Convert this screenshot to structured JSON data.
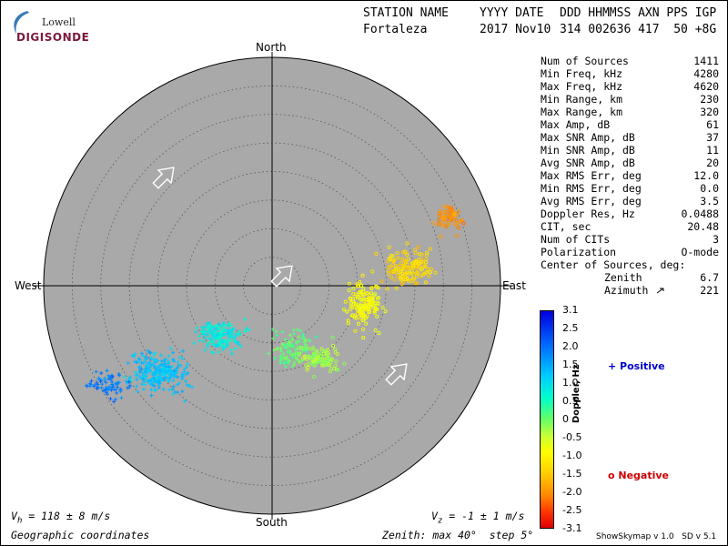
{
  "logo": {
    "line1": "Lowell",
    "line2": "DIGISONDE"
  },
  "header": {
    "labels": [
      "STATION NAME",
      "YYYY DATE",
      "DDD HHMMSS AXN PPS IGP"
    ],
    "station": "Fortaleza",
    "date": "2017 Nov10",
    "values": "314 002636 417  50 +8G"
  },
  "directions": {
    "north": "North",
    "south": "South",
    "east": "East",
    "west": "West"
  },
  "stats": [
    {
      "key": "Num of Sources",
      "value": "1411"
    },
    {
      "key": "Min Freq, kHz",
      "value": "4280"
    },
    {
      "key": "Max Freq, kHz",
      "value": "4620"
    },
    {
      "key": "Min Range, km",
      "value": "230"
    },
    {
      "key": "Max Range, km",
      "value": "320"
    },
    {
      "key": "Max Amp, dB",
      "value": "61"
    },
    {
      "key": "Max SNR Amp, dB",
      "value": "37"
    },
    {
      "key": "Min SNR Amp, dB",
      "value": "11"
    },
    {
      "key": "Avg SNR Amp, dB",
      "value": "20"
    },
    {
      "key": "Max RMS Err, deg",
      "value": "12.0"
    },
    {
      "key": "Min RMS Err, deg",
      "value": "0.0"
    },
    {
      "key": "Avg RMS Err, deg",
      "value": "3.5"
    },
    {
      "key": "Doppler Res, Hz",
      "value": "0.0488"
    },
    {
      "key": "CIT, sec",
      "value": "20.48"
    },
    {
      "key": "Num of CITs",
      "value": "3"
    },
    {
      "key": "Polarization",
      "value": "O-mode"
    }
  ],
  "center": {
    "label": "Center of Sources, deg:",
    "zenith_label": "Zenith",
    "zenith_value": "6.7",
    "azimuth_label": "Azimuth",
    "azimuth_value": "221"
  },
  "colorbar": {
    "title": "Doppler, Hz",
    "ticks": [
      "3.1",
      "2.5",
      "2.0",
      "1.5",
      "1.0",
      "0.5",
      "0",
      "-0.5",
      "-1.0",
      "-1.5",
      "-2.0",
      "-2.5",
      "-3.1"
    ],
    "min": -3.1,
    "max": 3.1
  },
  "legend": {
    "positive_label": "+ Positive",
    "negative_label": "o Negative",
    "positive_color": "#0000cc",
    "negative_color": "#cc0000"
  },
  "bottom": {
    "vh_sym": "V",
    "vh_sub": "h",
    "vh_value": " = 118 ± 8 m/s",
    "vz_sym": "V",
    "vz_sub": "z",
    "vz_value": " = -1 ± 1 m/s",
    "coords": "Geographic coordinates",
    "zenith": "Zenith: max 40°  step 5°",
    "version": "ShowSkymap v 1.0   SD v 5.1"
  },
  "plot": {
    "disk_color": "#a9a9a9",
    "max_zenith_deg": 40,
    "step_deg": 5
  }
}
